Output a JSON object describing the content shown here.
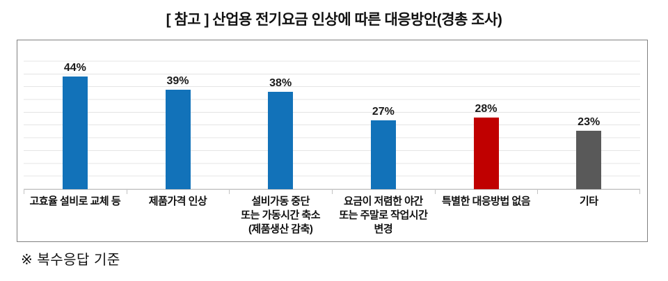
{
  "title": "[ 참고 ] 산업용 전기요금 인상에 따른 대응방안(경총 조사)",
  "footnote": "※ 복수응답 기준",
  "colors": {
    "bar_blue": "#1272B9",
    "bar_red": "#C00000",
    "bar_gray": "#595959",
    "gridline": "#e4e4e4",
    "axis_line": "#c2c2c2",
    "frame_border": "#7f7f7f"
  },
  "chart_data": {
    "type": "bar",
    "title": "[ 참고 ] 산업용 전기요금 인상에 따른 대응방안(경총 조사)",
    "categories": [
      "고효율 설비로 교체 등",
      "제품가격 인상",
      "설비가동 중단\n또는 가동시간 축소\n(제품생산 감축)",
      "요금이 저렴한 야간\n또는 주말로 작업시간\n변경",
      "특별한 대응방법 없음",
      "기타"
    ],
    "values": [
      44,
      39,
      38,
      27,
      28,
      23
    ],
    "value_labels": [
      "44%",
      "39%",
      "38%",
      "27%",
      "28%",
      "23%"
    ],
    "bar_colors": [
      "#1272B9",
      "#1272B9",
      "#1272B9",
      "#1272B9",
      "#C00000",
      "#595959"
    ],
    "xlabel": "",
    "ylabel": "",
    "ylim": [
      0,
      55
    ],
    "gridline_step": 5,
    "grid": true,
    "legend": false,
    "annotation": "※ 복수응답 기준"
  }
}
